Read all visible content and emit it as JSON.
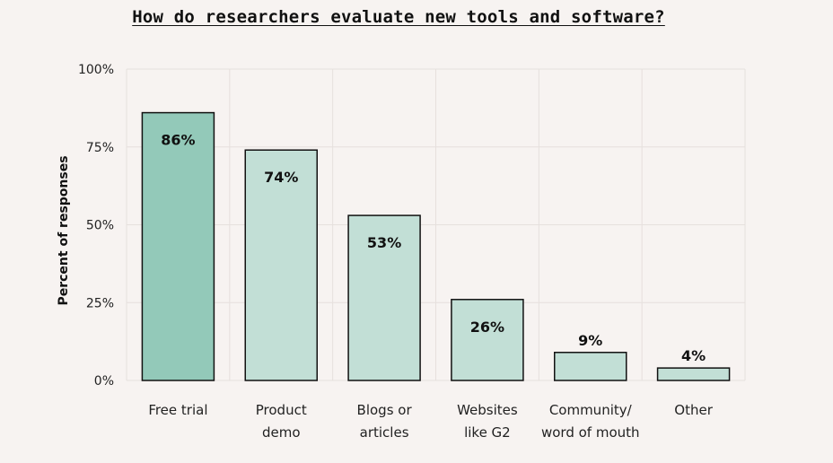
{
  "chart_data": {
    "type": "bar",
    "title": "How do researchers evaluate new tools and software?",
    "ylabel": "Percent of responses",
    "xlabel": "",
    "ylim": [
      0,
      100
    ],
    "yticks": [
      0,
      25,
      50,
      75,
      100
    ],
    "ytick_labels": [
      "0%",
      "25%",
      "50%",
      "75%",
      "100%"
    ],
    "grid": true,
    "categories": [
      [
        "Free trial"
      ],
      [
        "Product",
        "demo"
      ],
      [
        "Blogs or",
        "articles"
      ],
      [
        "Websites",
        "like G2"
      ],
      [
        "Community/",
        "word of mouth"
      ],
      [
        "Other"
      ]
    ],
    "values": [
      86,
      74,
      53,
      26,
      9,
      4
    ],
    "data_labels": [
      "86%",
      "74%",
      "53%",
      "26%",
      "9%",
      "4%"
    ],
    "colors": {
      "highlight_bar": "#93c9b9",
      "bar": "#c2dfd6",
      "bar_stroke": "#111111",
      "grid": "#e6e0dd",
      "background": "#f7f3f1"
    }
  }
}
